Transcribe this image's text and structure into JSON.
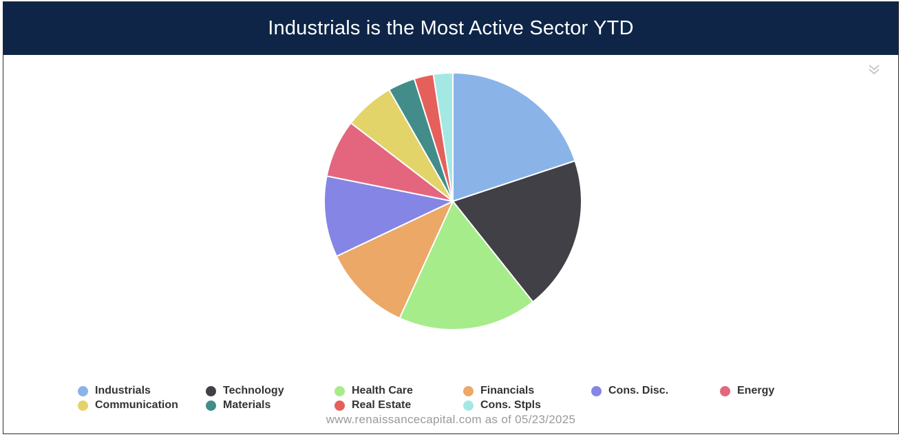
{
  "header": {
    "title": "Industrials is the Most Active Sector YTD"
  },
  "menu": {
    "icon": "double-chevron-down-icon"
  },
  "chart_data": {
    "type": "pie",
    "title": "Industrials is the Most Active Sector YTD",
    "slices": [
      {
        "name": "Industrials",
        "value": 20.5,
        "color": "#8ab4e8"
      },
      {
        "name": "Technology",
        "value": 20.0,
        "color": "#414046"
      },
      {
        "name": "Health Care",
        "value": 18.0,
        "color": "#a6ec8a"
      },
      {
        "name": "Financials",
        "value": 11.5,
        "color": "#eba866"
      },
      {
        "name": "Cons. Disc.",
        "value": 10.5,
        "color": "#8585e6"
      },
      {
        "name": "Energy",
        "value": 7.5,
        "color": "#e3667e"
      },
      {
        "name": "Communication",
        "value": 6.5,
        "color": "#e3d46a"
      },
      {
        "name": "Materials",
        "value": 3.5,
        "color": "#428c8a"
      },
      {
        "name": "Real Estate",
        "value": 2.5,
        "color": "#e5605b"
      },
      {
        "name": "Cons. Stpls",
        "value": 2.5,
        "color": "#a4e8e4"
      }
    ],
    "legend_position": "bottom",
    "start_angle": "top"
  },
  "footer": {
    "source": "www.renaissancecapital.com as of 05/23/2025"
  }
}
